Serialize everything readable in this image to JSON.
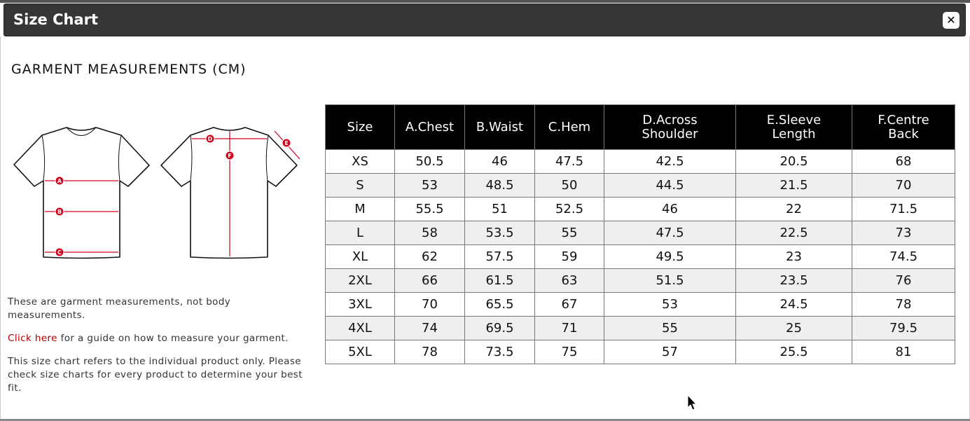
{
  "dialog": {
    "title": "Size Chart",
    "close_icon": "close-icon"
  },
  "heading": "GARMENT MEASUREMENTS (CM)",
  "diagram": {
    "labels": [
      "A",
      "B",
      "C",
      "D",
      "E",
      "F"
    ],
    "accent": "#d0021b"
  },
  "notes": {
    "line1": "These are garment measurements, not body measurements.",
    "link": "Click here",
    "line2_rest": " for a guide on how to measure your garment.",
    "line3": "This size chart refers to the individual product only. Please check size charts for every product to determine your best fit."
  },
  "table": {
    "headers": [
      "Size",
      "A.Chest",
      "B.Waist",
      "C.Hem",
      "D.Across Shoulder",
      "E.Sleeve Length",
      "F.Centre Back"
    ],
    "rows": [
      [
        "XS",
        "50.5",
        "46",
        "47.5",
        "42.5",
        "20.5",
        "68"
      ],
      [
        "S",
        "53",
        "48.5",
        "50",
        "44.5",
        "21.5",
        "70"
      ],
      [
        "M",
        "55.5",
        "51",
        "52.5",
        "46",
        "22",
        "71.5"
      ],
      [
        "L",
        "58",
        "53.5",
        "55",
        "47.5",
        "22.5",
        "73"
      ],
      [
        "XL",
        "62",
        "57.5",
        "59",
        "49.5",
        "23",
        "74.5"
      ],
      [
        "2XL",
        "66",
        "61.5",
        "63",
        "51.5",
        "23.5",
        "76"
      ],
      [
        "3XL",
        "70",
        "65.5",
        "67",
        "53",
        "24.5",
        "78"
      ],
      [
        "4XL",
        "74",
        "69.5",
        "71",
        "55",
        "25",
        "79.5"
      ],
      [
        "5XL",
        "78",
        "73.5",
        "75",
        "57",
        "25.5",
        "81"
      ]
    ]
  }
}
